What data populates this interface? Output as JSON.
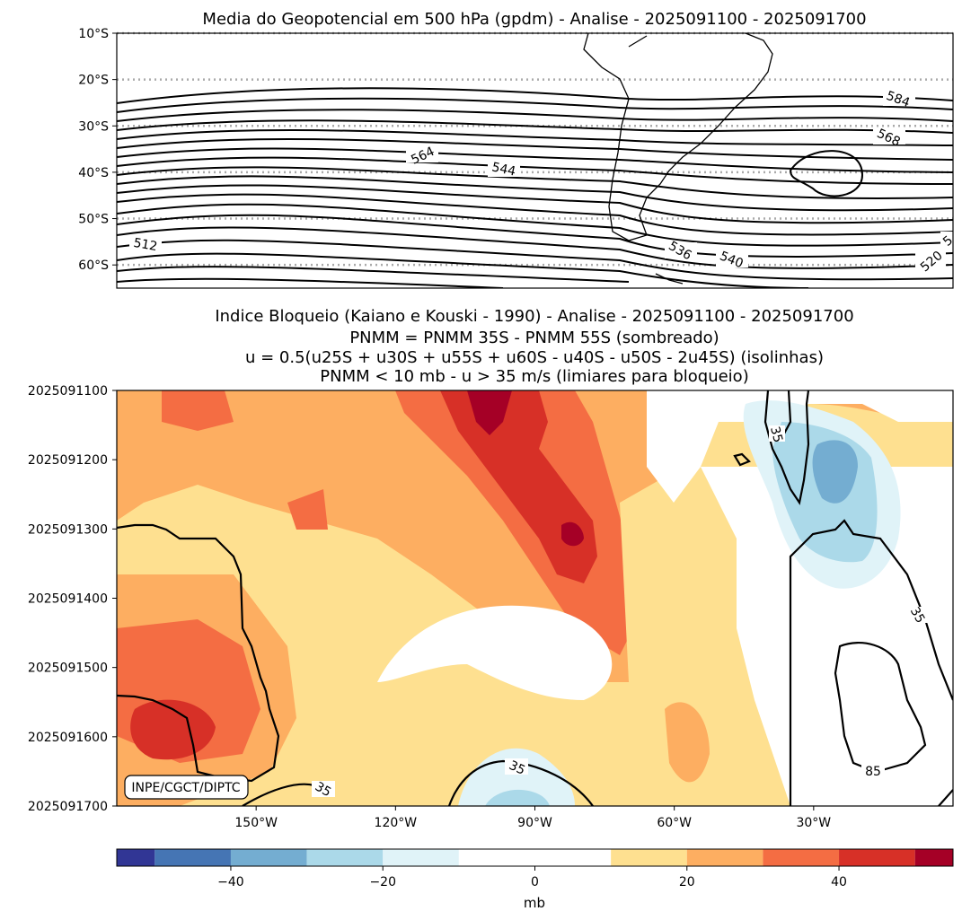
{
  "chart_data": [
    {
      "type": "contour",
      "title": "Media do Geopotencial em 500 hPa (gpdm) - Analise - 2025091100 - 2025091700",
      "y_tick_labels": [
        "10°S",
        "20°S",
        "30°S",
        "40°S",
        "50°S",
        "60°S"
      ],
      "y_values": [
        -10,
        -20,
        -30,
        -40,
        -50,
        -60
      ],
      "ylim": [
        -65,
        -10
      ],
      "gridlines": "dotted grey at each 10° latitude",
      "contour_interval_gpdm": 4,
      "contour_labels": [
        "584",
        "568",
        "564",
        "544",
        "536",
        "540",
        "512",
        "520",
        "5"
      ]
    },
    {
      "type": "filled-contour",
      "title_lines": [
        "Indice Bloqueio (Kaiano e Kouski - 1990) - Analise - 2025091100 - 2025091700",
        "PNMM = PNMM 35S - PNMM 55S (sombreado)",
        "u = 0.5(u25S + u30S + u55S + u60S - u40S - u50S - 2u45S) (isolinhas)",
        "PNMM < 10 mb - u > 35 m/s (limiares para bloqueio)"
      ],
      "y_tick_labels": [
        "2025091100",
        "2025091200",
        "2025091300",
        "2025091400",
        "2025091500",
        "2025091600",
        "2025091700"
      ],
      "x_tick_labels": [
        "150°W",
        "120°W",
        "90°W",
        "60°W",
        "30°W"
      ],
      "x_values": [
        -150,
        -120,
        -90,
        -60,
        -30
      ],
      "contour_labels": [
        "35",
        "35",
        "35",
        "35",
        "85"
      ],
      "credit": "INPE/CGCT/DIPTC"
    }
  ],
  "colorbar": {
    "label": "mb",
    "ticks": [
      "−40",
      "−20",
      "0",
      "20",
      "40"
    ],
    "tick_values": [
      -40,
      -20,
      0,
      20,
      40
    ],
    "range": [
      -55,
      55
    ],
    "levels": [
      -55,
      -50,
      -40,
      -30,
      -20,
      -10,
      10,
      20,
      30,
      40,
      50,
      55
    ],
    "colors": [
      "#313695",
      "#4575b4",
      "#74add1",
      "#abd9e9",
      "#e0f3f8",
      "#ffffff",
      "#fee090",
      "#fdae61",
      "#f46d43",
      "#d73027",
      "#a50026"
    ]
  }
}
